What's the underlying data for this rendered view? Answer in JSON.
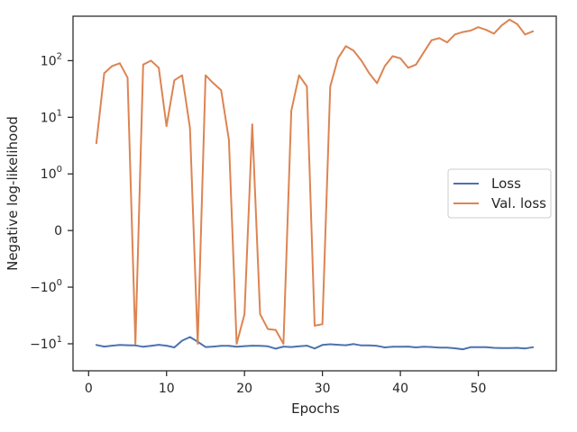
{
  "chart_data": {
    "type": "line",
    "title": "",
    "xlabel": "Epochs",
    "ylabel": "Negative log-likelihood",
    "y_scale": "symlog",
    "xlim": [
      -2,
      60
    ],
    "x_ticks": [
      0,
      10,
      20,
      30,
      40,
      50
    ],
    "y_ticks": [
      {
        "value": 100,
        "label": "10^2"
      },
      {
        "value": 10,
        "label": "10^1"
      },
      {
        "value": 1,
        "label": "10^0"
      },
      {
        "value": 0,
        "label": "0"
      },
      {
        "value": -1,
        "label": "−10^0"
      },
      {
        "value": -10,
        "label": "−10^1"
      }
    ],
    "grid": false,
    "legend_position": "center-right",
    "series": [
      {
        "name": "Loss",
        "color": "#4c72b0",
        "x": [
          1,
          2,
          3,
          4,
          5,
          6,
          7,
          8,
          9,
          10,
          11,
          12,
          13,
          14,
          15,
          16,
          17,
          18,
          19,
          20,
          21,
          22,
          23,
          24,
          25,
          26,
          27,
          28,
          29,
          30,
          31,
          32,
          33,
          34,
          35,
          36,
          37,
          38,
          39,
          40,
          41,
          42,
          43,
          44,
          45,
          46,
          47,
          48,
          49,
          50,
          51,
          52,
          53,
          54,
          55,
          56,
          57
        ],
        "values": [
          -10.5,
          -11.2,
          -10.8,
          -10.5,
          -10.6,
          -10.7,
          -11.3,
          -10.9,
          -10.4,
          -10.8,
          -11.6,
          -8.8,
          -7.6,
          -9.2,
          -11.4,
          -11.2,
          -10.9,
          -10.9,
          -11.3,
          -11.0,
          -10.8,
          -10.9,
          -11.1,
          -12.2,
          -11.2,
          -11.4,
          -11.1,
          -10.8,
          -12.1,
          -10.5,
          -10.2,
          -10.4,
          -10.6,
          -10.1,
          -10.7,
          -10.7,
          -10.9,
          -11.6,
          -11.3,
          -11.3,
          -11.2,
          -11.6,
          -11.3,
          -11.4,
          -11.7,
          -11.7,
          -12.0,
          -12.5,
          -11.5,
          -11.5,
          -11.5,
          -11.8,
          -11.9,
          -11.9,
          -11.8,
          -12.1,
          -11.5
        ]
      },
      {
        "name": "Val. loss",
        "color": "#dd8452",
        "x": [
          1,
          2,
          3,
          4,
          5,
          6,
          7,
          8,
          9,
          10,
          11,
          12,
          13,
          14,
          15,
          16,
          17,
          18,
          19,
          20,
          21,
          22,
          23,
          24,
          25,
          26,
          27,
          28,
          29,
          30,
          31,
          32,
          33,
          34,
          35,
          36,
          37,
          38,
          39,
          40,
          41,
          42,
          43,
          44,
          45,
          46,
          47,
          48,
          49,
          50,
          51,
          52,
          53,
          54,
          55,
          56,
          57
        ],
        "values": [
          3.5,
          60,
          80,
          90,
          50,
          -10,
          85,
          100,
          75,
          7,
          45,
          55,
          6.5,
          -10,
          55,
          40,
          30,
          4,
          -10,
          -3,
          7.5,
          -3,
          -5.5,
          -5.7,
          -10,
          13,
          55,
          35,
          -4.8,
          -4.5,
          35,
          110,
          180,
          150,
          100,
          60,
          40,
          80,
          120,
          110,
          75,
          85,
          140,
          230,
          250,
          210,
          290,
          320,
          340,
          390,
          350,
          300,
          420,
          530,
          440,
          290,
          330
        ]
      }
    ]
  }
}
